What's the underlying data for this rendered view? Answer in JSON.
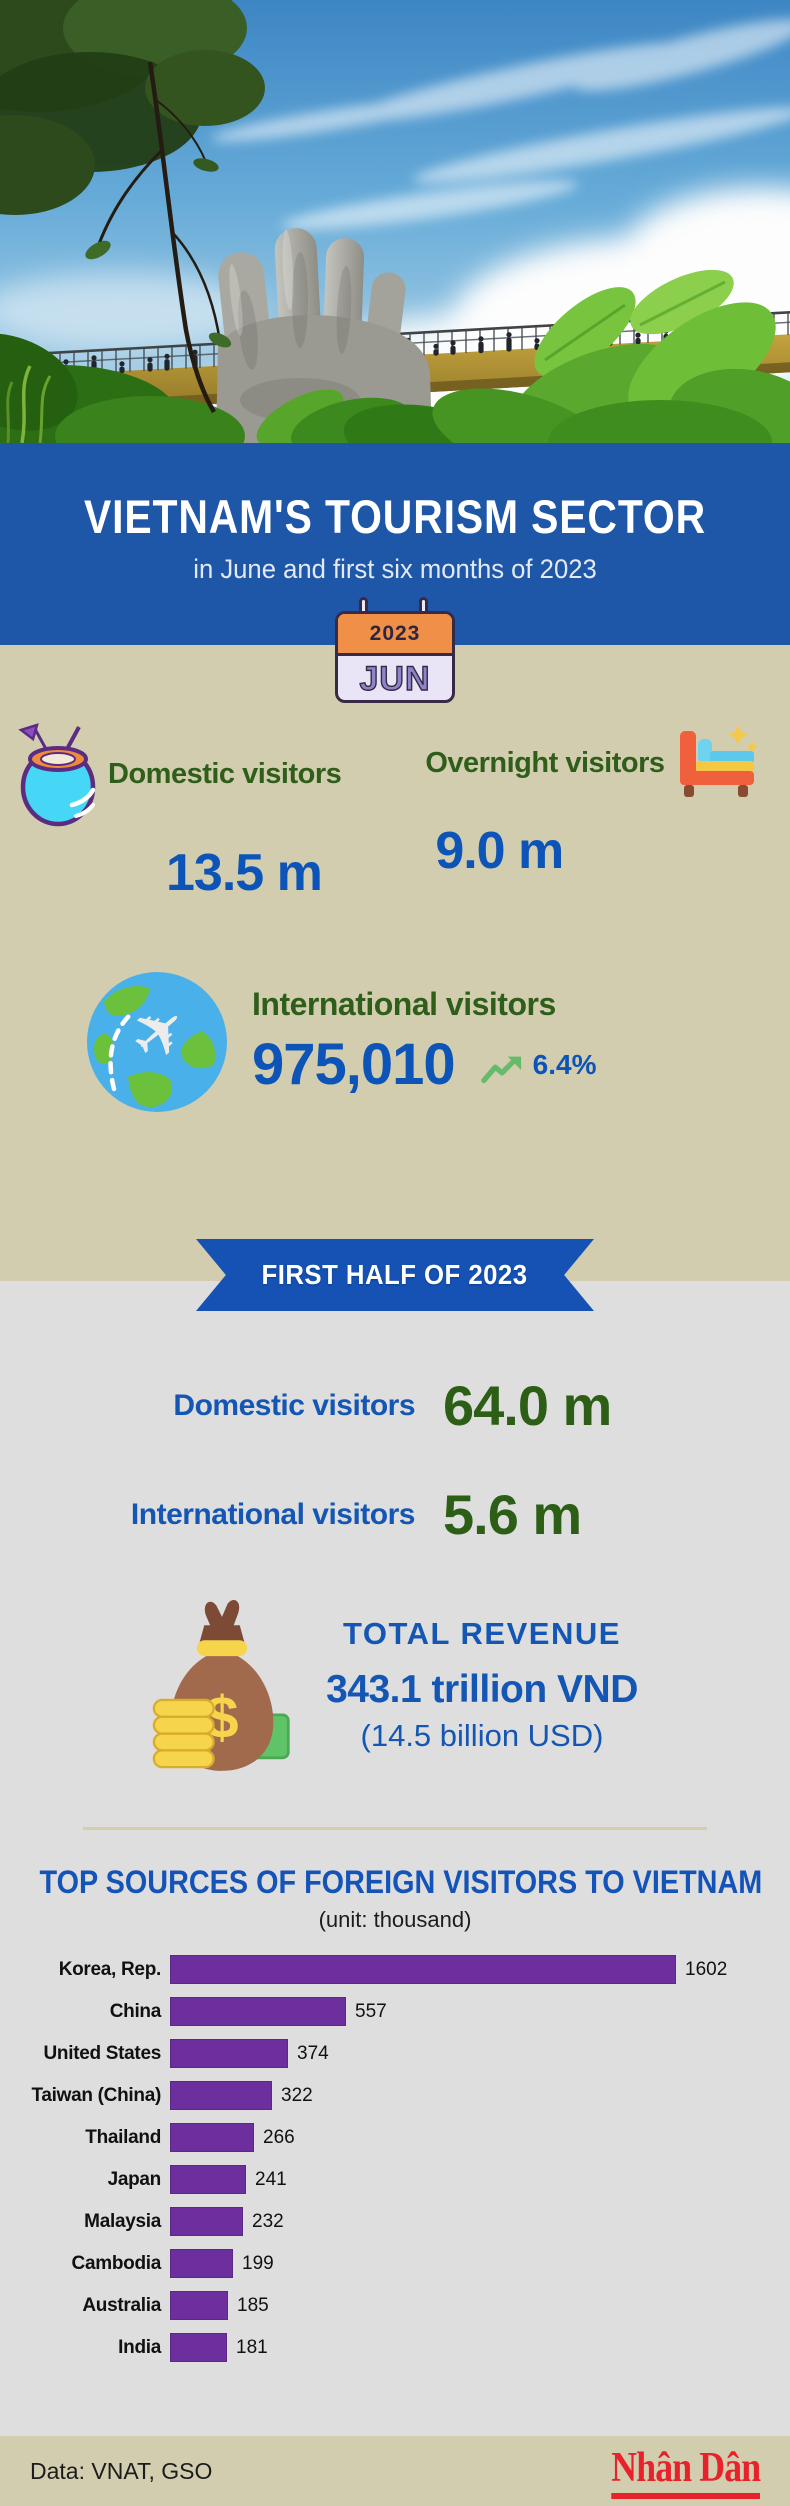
{
  "header": {
    "title": "VIETNAM'S TOURISM SECTOR",
    "subtitle": "in June and first six months of 2023",
    "calendar": {
      "year": "2023",
      "month": "JUN"
    }
  },
  "june": {
    "domestic": {
      "label": "Domestic visitors",
      "value": "13.5 m"
    },
    "overnight": {
      "label": "Overnight visitors",
      "value": "9.0 m"
    },
    "international": {
      "label": "International visitors",
      "value": "975,010",
      "growth": "6.4%"
    }
  },
  "first_half": {
    "ribbon": "FIRST HALF OF 2023",
    "domestic": {
      "label": "Domestic visitors",
      "value": "64.0 m"
    },
    "international": {
      "label": "International visitors",
      "value": "5.6 m"
    },
    "revenue": {
      "title": "TOTAL REVENUE",
      "vnd": "343.1 trillion VND",
      "usd": "(14.5 billion USD)"
    }
  },
  "chart_data": {
    "type": "bar",
    "orientation": "horizontal",
    "title": "TOP SOURCES OF FOREIGN VISITORS TO VIETNAM",
    "subtitle": "(unit: thousand)",
    "categories": [
      "Korea, Rep.",
      "China",
      "United States",
      "Taiwan (China)",
      "Thailand",
      "Japan",
      "Malaysia",
      "Cambodia",
      "Australia",
      "India"
    ],
    "values": [
      1602,
      557,
      374,
      322,
      266,
      241,
      232,
      199,
      185,
      181
    ],
    "xlim": [
      0,
      1602
    ],
    "bar_color": "#6e2f9e",
    "grid": false,
    "value_labels": "end-of-bar"
  },
  "footer": {
    "source": "Data: VNAT, GSO",
    "logo": "Nhân Dân"
  },
  "colors": {
    "banner_blue": "#1f57a8",
    "ribbon_blue": "#1552b4",
    "number_blue": "#0d54b8",
    "green_text": "#2f5e1a",
    "dark_green_value": "#2c5e15",
    "bar_purple": "#6e2f9e",
    "beige_bg": "#d3cdb0",
    "gray_bg": "#dededf",
    "logo_red": "#e8222a"
  }
}
